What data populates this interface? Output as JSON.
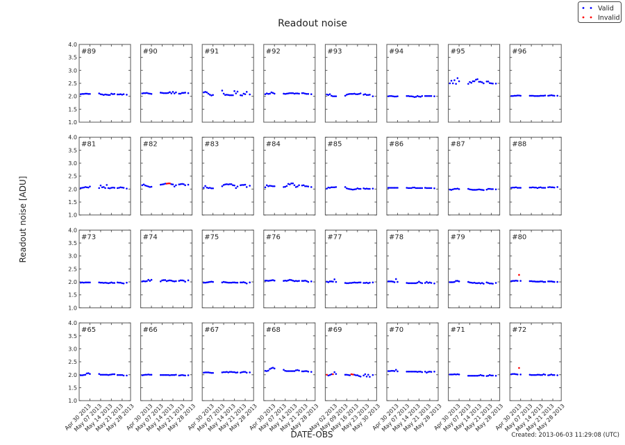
{
  "chart_data": {
    "type": "scatter",
    "title": "Readout noise",
    "xlabel": "DATE-OBS",
    "ylabel": "Readout noise [ADU]",
    "footer": "Created: 2013-06-03 11:29:08 (UTC)",
    "legend": {
      "placement": "top-right",
      "entries": [
        {
          "label": "Valid",
          "color": "#0000ff"
        },
        {
          "label": "Invalid",
          "color": "#ff0000"
        }
      ]
    },
    "ylim": [
      1.0,
      4.0
    ],
    "yticks": [
      "1.0",
      "1.5",
      "2.0",
      "2.5",
      "3.0",
      "3.5",
      "4.0"
    ],
    "xlim": [
      "2013-04-23",
      "2013-05-26"
    ],
    "xticks": [
      {
        "date": "2013-04-30",
        "label": "Apr 30 2013"
      },
      {
        "date": "2013-05-07",
        "label": "May 07 2013"
      },
      {
        "date": "2013-05-14",
        "label": "May 14 2013"
      },
      {
        "date": "2013-05-21",
        "label": "May 21 2013"
      },
      {
        "date": "2013-05-28",
        "label": "May 28 2013"
      }
    ],
    "grid": false,
    "dates": [
      "2013-04-24",
      "2013-04-25",
      "2013-04-26",
      "2013-04-27",
      "2013-04-28",
      "2013-04-29",
      "2013-04-30",
      "2013-05-06",
      "2013-05-07",
      "2013-05-08",
      "2013-05-09",
      "2013-05-10",
      "2013-05-11",
      "2013-05-12",
      "2013-05-13",
      "2013-05-14",
      "2013-05-15",
      "2013-05-16",
      "2013-05-18",
      "2013-05-19",
      "2013-05-20",
      "2013-05-21",
      "2013-05-22",
      "2013-05-24"
    ],
    "panels": [
      {
        "label": "#89",
        "values": [
          2.08,
          2.09,
          2.09,
          2.1,
          2.1,
          2.09,
          2.09,
          2.11,
          2.08,
          2.07,
          2.05,
          2.07,
          2.06,
          2.05,
          2.05,
          2.1,
          2.08,
          2.09,
          2.07,
          2.07,
          2.08,
          2.06,
          2.08,
          2.06
        ]
      },
      {
        "label": "#90",
        "values": [
          2.11,
          2.12,
          2.12,
          2.13,
          2.11,
          2.1,
          2.09,
          2.14,
          2.13,
          2.12,
          2.12,
          2.12,
          2.13,
          2.16,
          2.11,
          2.17,
          2.11,
          2.15,
          2.1,
          2.1,
          2.13,
          2.13,
          2.14,
          2.12
        ]
      },
      {
        "label": "#91",
        "values": [
          2.15,
          2.17,
          2.15,
          2.1,
          2.06,
          2.03,
          2.05,
          2.22,
          2.1,
          2.05,
          2.06,
          2.05,
          2.04,
          2.04,
          2.04,
          2.2,
          2.11,
          2.18,
          2.04,
          2.03,
          2.1,
          2.08,
          2.17,
          2.07
        ]
      },
      {
        "label": "#92",
        "values": [
          2.08,
          2.11,
          2.09,
          2.1,
          2.15,
          2.13,
          2.1,
          2.1,
          2.09,
          2.1,
          2.11,
          2.12,
          2.12,
          2.12,
          2.1,
          2.11,
          2.11,
          2.1,
          2.12,
          2.12,
          2.1,
          2.09,
          2.09,
          2.08
        ]
      },
      {
        "label": "#93",
        "values": [
          2.07,
          2.05,
          2.08,
          2.02,
          2.0,
          2.0,
          2.0,
          2.02,
          2.06,
          2.08,
          2.09,
          2.09,
          2.09,
          2.1,
          2.08,
          2.08,
          2.09,
          2.11,
          2.06,
          2.08,
          2.05,
          2.05,
          2.06,
          2.0
        ]
      },
      {
        "label": "#94",
        "values": [
          2.0,
          2.01,
          2.01,
          2.0,
          1.99,
          1.99,
          2.0,
          2.01,
          2.01,
          2.0,
          2.0,
          1.99,
          1.97,
          1.98,
          2.01,
          1.99,
          1.98,
          2.01,
          2.01,
          2.01,
          2.01,
          2.01,
          2.01,
          2.0
        ]
      },
      {
        "label": "#95",
        "values": [
          2.5,
          2.6,
          2.5,
          2.62,
          2.48,
          2.7,
          2.58,
          2.48,
          2.55,
          2.52,
          2.58,
          2.58,
          2.64,
          2.66,
          2.56,
          2.56,
          2.54,
          2.5,
          2.57,
          2.57,
          2.51,
          2.5,
          2.49,
          2.49
        ]
      },
      {
        "label": "#96",
        "values": [
          2.01,
          2.01,
          2.02,
          2.02,
          2.03,
          2.03,
          2.02,
          2.02,
          2.02,
          2.02,
          2.01,
          2.01,
          2.01,
          2.01,
          2.02,
          2.02,
          2.02,
          2.03,
          2.02,
          2.03,
          2.04,
          2.03,
          2.02,
          2.02
        ]
      },
      {
        "label": "#81",
        "values": [
          2.04,
          2.05,
          2.06,
          2.08,
          2.07,
          2.06,
          2.1,
          2.04,
          2.14,
          2.07,
          2.08,
          2.04,
          2.16,
          2.04,
          2.03,
          2.05,
          2.06,
          2.05,
          2.04,
          2.05,
          2.07,
          2.06,
          2.05,
          2.02
        ]
      },
      {
        "label": "#82",
        "values": [
          2.15,
          2.18,
          2.14,
          2.12,
          2.1,
          2.08,
          2.09,
          2.17,
          2.18,
          2.19,
          2.21,
          null,
          null,
          null,
          2.19,
          2.18,
          2.1,
          2.15,
          2.18,
          2.19,
          2.2,
          2.19,
          2.15,
          2.17
        ],
        "invalid": [
          [
            "2013-05-10",
            2.21
          ],
          [
            "2013-05-11",
            2.22
          ],
          [
            "2013-05-12",
            2.22
          ]
        ]
      },
      {
        "label": "#83",
        "values": [
          2.05,
          2.12,
          2.06,
          2.04,
          2.05,
          2.03,
          2.03,
          2.11,
          2.16,
          2.18,
          2.19,
          2.18,
          2.19,
          2.19,
          2.15,
          2.14,
          2.04,
          2.1,
          2.15,
          2.16,
          2.16,
          2.17,
          2.08,
          2.13
        ]
      },
      {
        "label": "#84",
        "values": [
          2.07,
          2.15,
          2.11,
          2.13,
          2.12,
          2.11,
          2.11,
          2.08,
          2.09,
          2.12,
          2.2,
          2.18,
          2.22,
          2.22,
          2.15,
          2.08,
          2.1,
          2.15,
          2.14,
          2.15,
          2.11,
          2.11,
          2.1,
          2.08
        ]
      },
      {
        "label": "#85",
        "values": [
          2.02,
          2.06,
          2.05,
          2.07,
          2.07,
          2.07,
          2.08,
          2.08,
          2.03,
          2.01,
          2.0,
          1.99,
          1.98,
          1.99,
          2.0,
          2.03,
          2.01,
          2.01,
          2.03,
          2.01,
          2.02,
          2.01,
          2.01,
          2.02
        ]
      },
      {
        "label": "#86",
        "values": [
          2.05,
          2.05,
          2.05,
          2.05,
          2.05,
          2.05,
          2.05,
          2.05,
          2.04,
          2.04,
          2.04,
          2.06,
          2.06,
          2.04,
          2.04,
          2.04,
          2.04,
          2.04,
          2.05,
          2.04,
          2.04,
          2.04,
          2.04,
          2.03
        ]
      },
      {
        "label": "#87",
        "values": [
          1.98,
          1.97,
          1.99,
          2.01,
          2.01,
          2.02,
          2.0,
          2.01,
          1.99,
          1.98,
          1.97,
          1.97,
          1.97,
          1.98,
          1.99,
          1.98,
          1.97,
          1.96,
          1.98,
          2.01,
          2.01,
          2.0,
          2.0,
          1.99
        ]
      },
      {
        "label": "#88",
        "values": [
          2.05,
          2.06,
          2.06,
          2.07,
          2.05,
          2.05,
          2.05,
          2.06,
          2.06,
          2.07,
          2.06,
          2.06,
          2.04,
          2.06,
          2.07,
          2.05,
          2.05,
          2.05,
          2.07,
          2.08,
          2.07,
          2.07,
          2.06,
          2.08
        ]
      },
      {
        "label": "#73",
        "values": [
          1.97,
          1.98,
          1.97,
          1.98,
          1.98,
          1.98,
          1.98,
          1.98,
          1.97,
          1.97,
          1.96,
          1.97,
          1.96,
          1.95,
          1.96,
          1.98,
          1.96,
          1.96,
          1.98,
          1.97,
          1.97,
          1.95,
          1.94,
          1.97
        ]
      },
      {
        "label": "#74",
        "values": [
          2.02,
          2.03,
          2.02,
          2.03,
          2.08,
          2.04,
          2.08,
          2.02,
          2.06,
          2.07,
          2.07,
          2.03,
          2.05,
          2.06,
          2.05,
          2.03,
          2.02,
          2.03,
          2.04,
          2.06,
          2.06,
          2.05,
          2.01,
          2.06
        ]
      },
      {
        "label": "#75",
        "values": [
          1.97,
          1.97,
          1.98,
          1.99,
          2.0,
          2.01,
          2.0,
          1.98,
          2.0,
          1.99,
          1.98,
          1.97,
          1.97,
          1.97,
          1.98,
          1.98,
          1.97,
          1.97,
          1.98,
          1.98,
          1.99,
          1.97,
          1.94,
          1.98
        ]
      },
      {
        "label": "#76",
        "values": [
          2.05,
          2.05,
          2.04,
          2.05,
          2.06,
          2.07,
          2.05,
          2.04,
          2.05,
          2.04,
          2.06,
          2.08,
          2.07,
          2.05,
          2.03,
          2.04,
          2.03,
          2.04,
          2.04,
          2.04,
          2.05,
          2.03,
          2.0,
          2.02
        ]
      },
      {
        "label": "#77",
        "values": [
          2.01,
          1.99,
          2.02,
          2.02,
          2.01,
          2.1,
          2.0,
          1.96,
          1.95,
          1.95,
          1.96,
          1.96,
          1.97,
          1.98,
          1.97,
          1.97,
          1.98,
          1.98,
          1.96,
          1.96,
          1.97,
          1.95,
          1.97,
          1.98
        ]
      },
      {
        "label": "#78",
        "values": [
          2.02,
          2.02,
          2.02,
          2.01,
          1.99,
          2.11,
          2.0,
          1.96,
          1.95,
          1.95,
          1.95,
          1.95,
          1.95,
          1.95,
          1.97,
          2.01,
          1.97,
          1.95,
          1.96,
          2.0,
          1.96,
          1.98,
          1.96,
          1.94
        ]
      },
      {
        "label": "#79",
        "values": [
          1.99,
          1.99,
          1.99,
          2.0,
          2.04,
          2.04,
          2.02,
          2.0,
          1.98,
          1.97,
          1.96,
          1.97,
          1.95,
          1.95,
          1.96,
          1.94,
          1.96,
          1.93,
          1.98,
          1.96,
          1.94,
          1.94,
          1.93,
          1.96
        ]
      },
      {
        "label": "#80",
        "values": [
          2.03,
          2.04,
          2.04,
          2.05,
          2.04,
          null,
          2.04,
          2.03,
          2.03,
          2.02,
          2.02,
          2.01,
          2.01,
          2.01,
          2.02,
          2.02,
          2.0,
          2.0,
          2.02,
          2.02,
          2.02,
          2.01,
          2.0,
          2.0
        ],
        "invalid": [
          [
            "2013-04-29",
            2.27
          ]
        ]
      },
      {
        "label": "#65",
        "values": [
          1.98,
          1.98,
          1.99,
          2.0,
          2.05,
          2.06,
          2.03,
          2.03,
          2.0,
          2.0,
          2.0,
          2.0,
          2.0,
          1.99,
          2.0,
          2.01,
          2.02,
          2.02,
          1.99,
          1.99,
          1.99,
          1.99,
          1.97,
          1.97
        ]
      },
      {
        "label": "#66",
        "values": [
          1.98,
          1.99,
          2.0,
          2.0,
          2.01,
          2.0,
          2.0,
          1.99,
          1.99,
          1.99,
          1.99,
          1.99,
          1.99,
          1.98,
          1.99,
          1.99,
          1.99,
          2.0,
          1.97,
          1.98,
          1.99,
          1.98,
          1.97,
          1.98
        ]
      },
      {
        "label": "#67",
        "values": [
          2.08,
          2.09,
          2.09,
          2.09,
          2.08,
          2.07,
          2.07,
          2.09,
          2.1,
          2.1,
          2.11,
          2.09,
          2.11,
          2.11,
          2.1,
          2.1,
          2.08,
          2.09,
          2.08,
          2.1,
          2.11,
          2.11,
          2.08,
          2.09
        ]
      },
      {
        "label": "#68",
        "values": [
          2.15,
          2.14,
          2.16,
          2.22,
          2.25,
          2.27,
          2.24,
          2.19,
          2.15,
          2.14,
          2.14,
          2.14,
          2.14,
          2.14,
          2.14,
          2.17,
          2.18,
          2.16,
          2.13,
          2.13,
          2.14,
          2.14,
          2.12,
          2.11
        ]
      },
      {
        "label": "#69",
        "xlim": [
          "2013-04-25",
          "2013-05-28"
        ],
        "xticks": [
          {
            "date": "2013-05-02",
            "label": "May 02 2013"
          },
          {
            "date": "2013-05-09",
            "label": "May 09 2013"
          },
          {
            "date": "2013-05-16",
            "label": "May 16 2013"
          },
          {
            "date": "2013-05-23",
            "label": "May 23 2013"
          },
          {
            "date": "2013-05-30",
            "label": "May 30 2013"
          }
        ],
        "dates": [
          "2013-04-26",
          "2013-04-27",
          "2013-04-28",
          "2013-04-29",
          "2013-04-30",
          "2013-05-01",
          "2013-05-02",
          "2013-05-08",
          "2013-05-09",
          "2013-05-10",
          "2013-05-11",
          "2013-05-12",
          "2013-05-13",
          "2013-05-14",
          "2013-05-15",
          "2013-05-16",
          "2013-05-17",
          "2013-05-18",
          "2013-05-20",
          "2013-05-21",
          "2013-05-22",
          "2013-05-23",
          "2013-05-24",
          "2013-05-26"
        ],
        "values": [
          null,
          1.97,
          1.99,
          2.02,
          null,
          2.1,
          2.03,
          2.0,
          2.0,
          1.99,
          1.98,
          null,
          null,
          2.0,
          1.98,
          1.98,
          1.95,
          1.93,
          1.97,
          2.02,
          1.93,
          2.0,
          1.92,
          1.99
        ],
        "invalid": [
          [
            "2013-04-26",
            2.0
          ],
          [
            "2013-04-30",
            2.02
          ],
          [
            "2013-05-12",
            2.02
          ],
          [
            "2013-05-13",
            2.01
          ]
        ]
      },
      {
        "label": "#70",
        "values": [
          2.14,
          2.14,
          2.15,
          2.15,
          2.14,
          2.19,
          2.13,
          2.12,
          2.12,
          2.12,
          2.12,
          2.12,
          2.12,
          2.12,
          2.11,
          2.12,
          2.12,
          2.1,
          2.12,
          2.08,
          2.11,
          2.12,
          2.11,
          2.12
        ]
      },
      {
        "label": "#71",
        "values": [
          2.01,
          2.01,
          2.01,
          2.02,
          2.01,
          2.02,
          2.01,
          1.96,
          1.96,
          1.96,
          1.96,
          1.96,
          1.96,
          1.96,
          1.97,
          1.99,
          1.97,
          1.96,
          1.95,
          1.96,
          1.99,
          1.97,
          1.97,
          1.96
        ]
      },
      {
        "label": "#72",
        "values": [
          2.02,
          2.03,
          2.03,
          2.02,
          2.01,
          null,
          2.01,
          2.0,
          1.99,
          1.99,
          1.99,
          1.99,
          2.0,
          2.0,
          1.99,
          1.99,
          2.02,
          2.0,
          1.98,
          1.99,
          2.01,
          1.99,
          1.99,
          1.98
        ],
        "invalid": [
          [
            "2013-04-29",
            2.26
          ]
        ]
      }
    ]
  }
}
